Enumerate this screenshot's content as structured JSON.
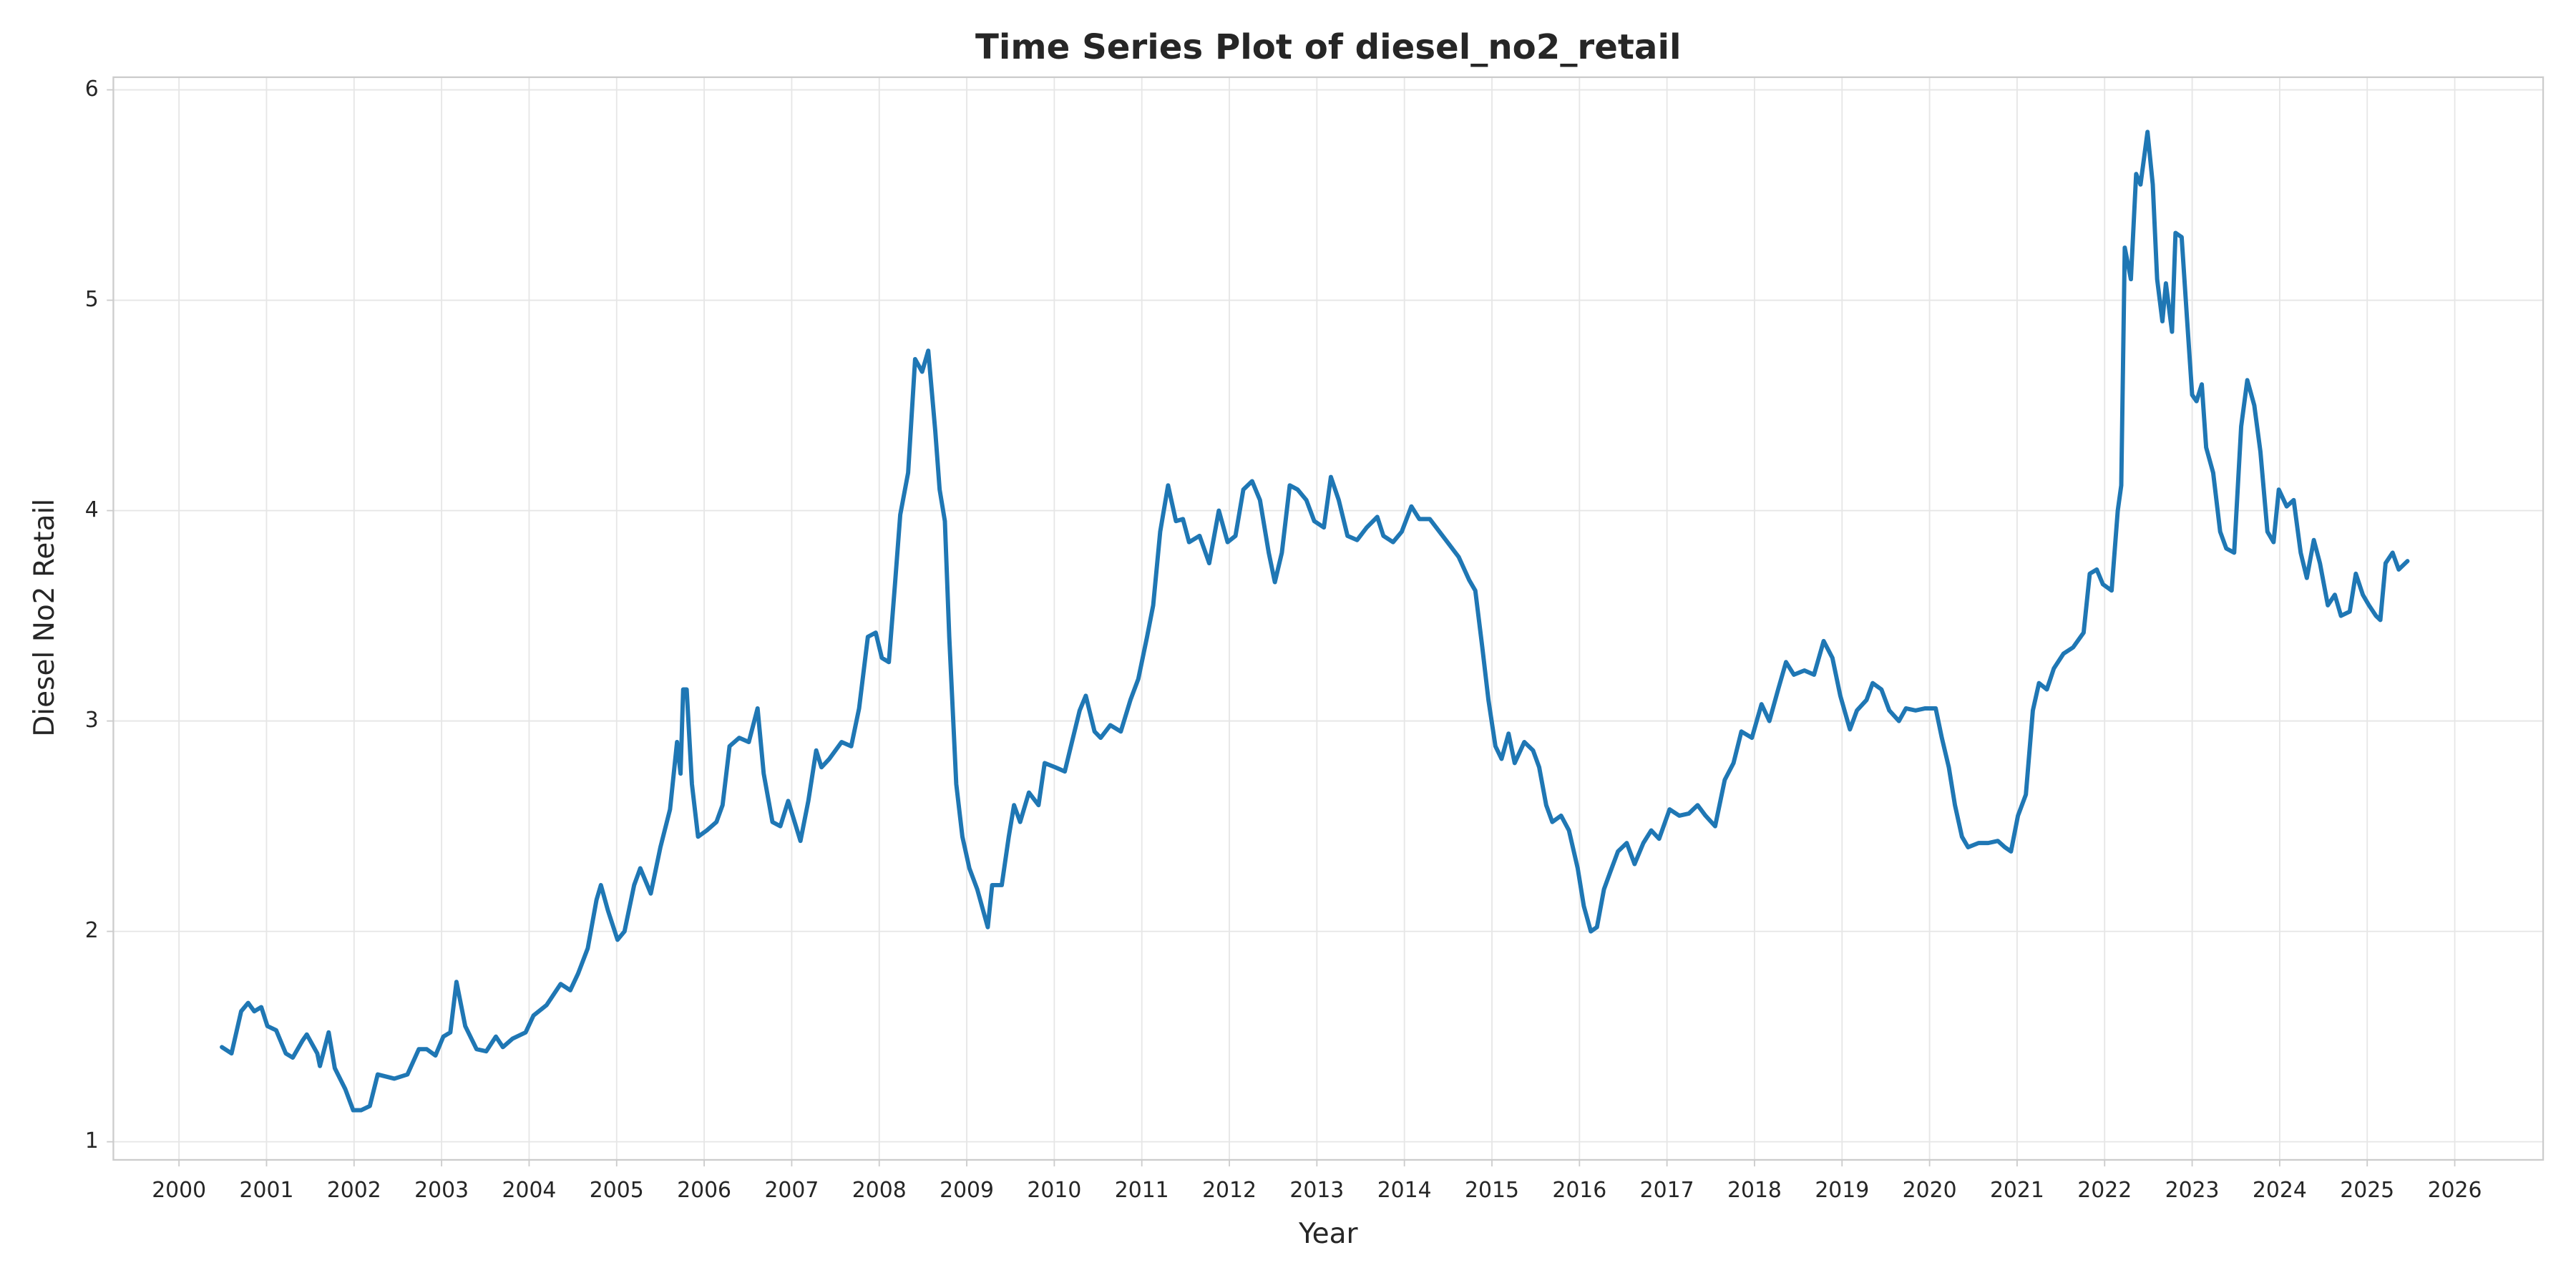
{
  "chart_data": {
    "type": "line",
    "title": "Time Series Plot of diesel_no2_retail",
    "x_label": "Year",
    "y_label": "Diesel No2 Retail",
    "color": "#1f77b4",
    "grid": true,
    "xlim": [
      1999.25,
      2027.01
    ],
    "ylim": [
      0.914,
      6.06
    ],
    "xticks": [
      2000,
      2001,
      2002,
      2003,
      2004,
      2005,
      2006,
      2007,
      2008,
      2009,
      2010,
      2011,
      2012,
      2013,
      2014,
      2015,
      2016,
      2017,
      2018,
      2019,
      2020,
      2021,
      2022,
      2023,
      2024,
      2025,
      2026
    ],
    "yticks": [
      1,
      2,
      3,
      4,
      5,
      6
    ],
    "x": [
      2000.49,
      2000.6,
      2000.71,
      2000.79,
      2000.86,
      2000.94,
      2001.01,
      2001.11,
      2001.22,
      2001.3,
      2001.41,
      2001.46,
      2001.58,
      2001.61,
      2001.71,
      2001.78,
      2001.9,
      2001.99,
      2002.08,
      2002.18,
      2002.27,
      2002.46,
      2002.61,
      2002.74,
      2002.83,
      2002.93,
      2003.02,
      2003.1,
      2003.17,
      2003.27,
      2003.4,
      2003.51,
      2003.62,
      2003.7,
      2003.81,
      2003.96,
      2004.05,
      2004.2,
      2004.36,
      2004.47,
      2004.56,
      2004.67,
      2004.77,
      2004.82,
      2004.9,
      2005.01,
      2005.09,
      2005.2,
      2005.27,
      2005.39,
      2005.5,
      2005.61,
      2005.69,
      2005.73,
      2005.76,
      2005.8,
      2005.86,
      2005.93,
      2006.03,
      2006.14,
      2006.21,
      2006.29,
      2006.4,
      2006.51,
      2006.61,
      2006.68,
      2006.78,
      2006.87,
      2006.96,
      2007.1,
      2007.19,
      2007.28,
      2007.34,
      2007.43,
      2007.57,
      2007.68,
      2007.77,
      2007.87,
      2007.96,
      2008.03,
      2008.11,
      2008.18,
      2008.24,
      2008.33,
      2008.41,
      2008.49,
      2008.56,
      2008.64,
      2008.69,
      2008.75,
      2008.8,
      2008.88,
      2008.95,
      2009.03,
      2009.12,
      2009.24,
      2009.29,
      2009.4,
      2009.48,
      2009.54,
      2009.61,
      2009.71,
      2009.82,
      2009.89,
      2010.01,
      2010.12,
      2010.19,
      2010.29,
      2010.36,
      2010.46,
      2010.53,
      2010.64,
      2010.76,
      2010.87,
      2010.96,
      2011.06,
      2011.13,
      2011.21,
      2011.3,
      2011.39,
      2011.47,
      2011.54,
      2011.66,
      2011.77,
      2011.88,
      2011.98,
      2012.07,
      2012.16,
      2012.26,
      2012.35,
      2012.45,
      2012.52,
      2012.6,
      2012.69,
      2012.78,
      2012.88,
      2012.97,
      2013.08,
      2013.16,
      2013.25,
      2013.35,
      2013.46,
      2013.57,
      2013.69,
      2013.76,
      2013.87,
      2013.97,
      2014.08,
      2014.17,
      2014.29,
      2014.4,
      2014.51,
      2014.62,
      2014.74,
      2014.81,
      2014.89,
      2014.96,
      2015.04,
      2015.11,
      2015.19,
      2015.26,
      2015.37,
      2015.47,
      2015.54,
      2015.62,
      2015.69,
      2015.79,
      2015.88,
      2015.98,
      2016.05,
      2016.13,
      2016.2,
      2016.28,
      2016.35,
      2016.44,
      2016.54,
      2016.63,
      2016.73,
      2016.82,
      2016.91,
      2017.03,
      2017.14,
      2017.25,
      2017.35,
      2017.44,
      2017.55,
      2017.66,
      2017.76,
      2017.85,
      2017.97,
      2018.08,
      2018.17,
      2018.27,
      2018.36,
      2018.45,
      2018.57,
      2018.68,
      2018.79,
      2018.89,
      2018.98,
      2019.09,
      2019.17,
      2019.28,
      2019.35,
      2019.45,
      2019.54,
      2019.65,
      2019.73,
      2019.84,
      2019.95,
      2020.07,
      2020.14,
      2020.22,
      2020.29,
      2020.37,
      2020.44,
      2020.56,
      2020.67,
      2020.78,
      2020.86,
      2020.93,
      2021.01,
      2021.1,
      2021.18,
      2021.25,
      2021.34,
      2021.42,
      2021.53,
      2021.64,
      2021.76,
      2021.83,
      2021.91,
      2021.98,
      2022.08,
      2022.15,
      2022.19,
      2022.23,
      2022.3,
      2022.36,
      2022.41,
      2022.49,
      2022.55,
      2022.6,
      2022.66,
      2022.7,
      2022.77,
      2022.81,
      2022.88,
      2022.94,
      2023.0,
      2023.05,
      2023.11,
      2023.16,
      2023.24,
      2023.32,
      2023.39,
      2023.48,
      2023.56,
      2023.63,
      2023.71,
      2023.78,
      2023.86,
      2023.93,
      2023.99,
      2024.08,
      2024.16,
      2024.24,
      2024.31,
      2024.39,
      2024.46,
      2024.55,
      2024.63,
      2024.7,
      2024.8,
      2024.87,
      2024.95,
      2025.02,
      2025.1,
      2025.15,
      2025.21,
      2025.29,
      2025.36,
      2025.46
    ],
    "values": [
      1.45,
      1.42,
      1.62,
      1.66,
      1.62,
      1.64,
      1.55,
      1.53,
      1.42,
      1.4,
      1.48,
      1.51,
      1.42,
      1.36,
      1.52,
      1.35,
      1.25,
      1.15,
      1.15,
      1.17,
      1.32,
      1.3,
      1.32,
      1.44,
      1.44,
      1.41,
      1.5,
      1.52,
      1.76,
      1.55,
      1.44,
      1.43,
      1.5,
      1.45,
      1.49,
      1.52,
      1.6,
      1.65,
      1.75,
      1.72,
      1.8,
      1.92,
      2.15,
      2.22,
      2.1,
      1.96,
      2.0,
      2.22,
      2.3,
      2.18,
      2.4,
      2.58,
      2.9,
      2.75,
      3.15,
      3.15,
      2.7,
      2.45,
      2.48,
      2.52,
      2.6,
      2.88,
      2.92,
      2.9,
      3.06,
      2.75,
      2.52,
      2.5,
      2.62,
      2.43,
      2.62,
      2.86,
      2.78,
      2.82,
      2.9,
      2.88,
      3.06,
      3.4,
      3.42,
      3.3,
      3.28,
      3.65,
      3.98,
      4.18,
      4.72,
      4.66,
      4.76,
      4.38,
      4.1,
      3.95,
      3.4,
      2.7,
      2.45,
      2.3,
      2.2,
      2.02,
      2.22,
      2.22,
      2.45,
      2.6,
      2.52,
      2.66,
      2.6,
      2.8,
      2.78,
      2.76,
      2.88,
      3.05,
      3.12,
      2.95,
      2.92,
      2.98,
      2.95,
      3.1,
      3.2,
      3.4,
      3.55,
      3.9,
      4.12,
      3.95,
      3.96,
      3.85,
      3.88,
      3.75,
      4.0,
      3.85,
      3.88,
      4.1,
      4.14,
      4.05,
      3.8,
      3.66,
      3.8,
      4.12,
      4.1,
      4.05,
      3.95,
      3.92,
      4.16,
      4.05,
      3.88,
      3.86,
      3.92,
      3.97,
      3.88,
      3.85,
      3.9,
      4.02,
      3.96,
      3.96,
      3.9,
      3.84,
      3.78,
      3.67,
      3.62,
      3.35,
      3.1,
      2.88,
      2.82,
      2.94,
      2.8,
      2.9,
      2.86,
      2.78,
      2.6,
      2.52,
      2.55,
      2.48,
      2.3,
      2.12,
      2.0,
      2.02,
      2.2,
      2.28,
      2.38,
      2.42,
      2.32,
      2.42,
      2.48,
      2.44,
      2.58,
      2.55,
      2.56,
      2.6,
      2.55,
      2.5,
      2.72,
      2.8,
      2.95,
      2.92,
      3.08,
      3.0,
      3.15,
      3.28,
      3.22,
      3.24,
      3.22,
      3.38,
      3.3,
      3.12,
      2.96,
      3.05,
      3.1,
      3.18,
      3.15,
      3.05,
      3.0,
      3.06,
      3.05,
      3.06,
      3.06,
      2.92,
      2.78,
      2.6,
      2.45,
      2.4,
      2.42,
      2.42,
      2.43,
      2.4,
      2.38,
      2.55,
      2.65,
      3.05,
      3.18,
      3.15,
      3.25,
      3.32,
      3.35,
      3.42,
      3.7,
      3.72,
      3.65,
      3.62,
      4.0,
      4.12,
      5.25,
      5.1,
      5.6,
      5.55,
      5.8,
      5.55,
      5.1,
      4.9,
      5.08,
      4.85,
      5.32,
      5.3,
      4.92,
      4.55,
      4.52,
      4.6,
      4.3,
      4.18,
      3.9,
      3.82,
      3.8,
      4.4,
      4.62,
      4.5,
      4.28,
      3.9,
      3.85,
      4.1,
      4.02,
      4.05,
      3.8,
      3.68,
      3.86,
      3.75,
      3.55,
      3.6,
      3.5,
      3.52,
      3.7,
      3.6,
      3.55,
      3.5,
      3.48,
      3.75,
      3.8,
      3.72,
      3.76
    ]
  }
}
